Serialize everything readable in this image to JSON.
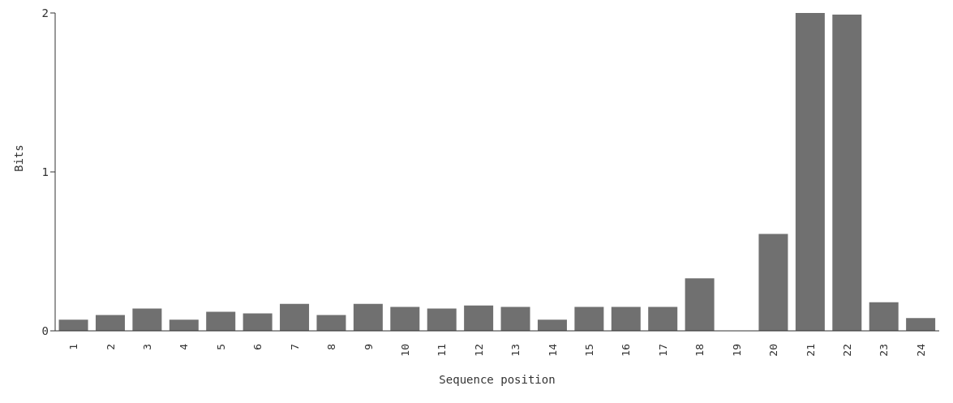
{
  "chart_data": {
    "type": "bar",
    "xlabel": "Sequence position",
    "ylabel": "Bits",
    "categories": [
      "1",
      "2",
      "3",
      "4",
      "5",
      "6",
      "7",
      "8",
      "9",
      "10",
      "11",
      "12",
      "13",
      "14",
      "15",
      "16",
      "17",
      "18",
      "19",
      "20",
      "21",
      "22",
      "23",
      "24"
    ],
    "values": [
      0.07,
      0.1,
      0.14,
      0.07,
      0.12,
      0.11,
      0.17,
      0.1,
      0.17,
      0.15,
      0.14,
      0.16,
      0.15,
      0.07,
      0.15,
      0.15,
      0.15,
      0.33,
      0,
      0.61,
      2.0,
      1.99,
      0.18,
      0.08
    ],
    "color": "#707070",
    "ylim": [
      0,
      2
    ],
    "yticks": [
      0,
      1,
      2
    ],
    "grid": false
  }
}
